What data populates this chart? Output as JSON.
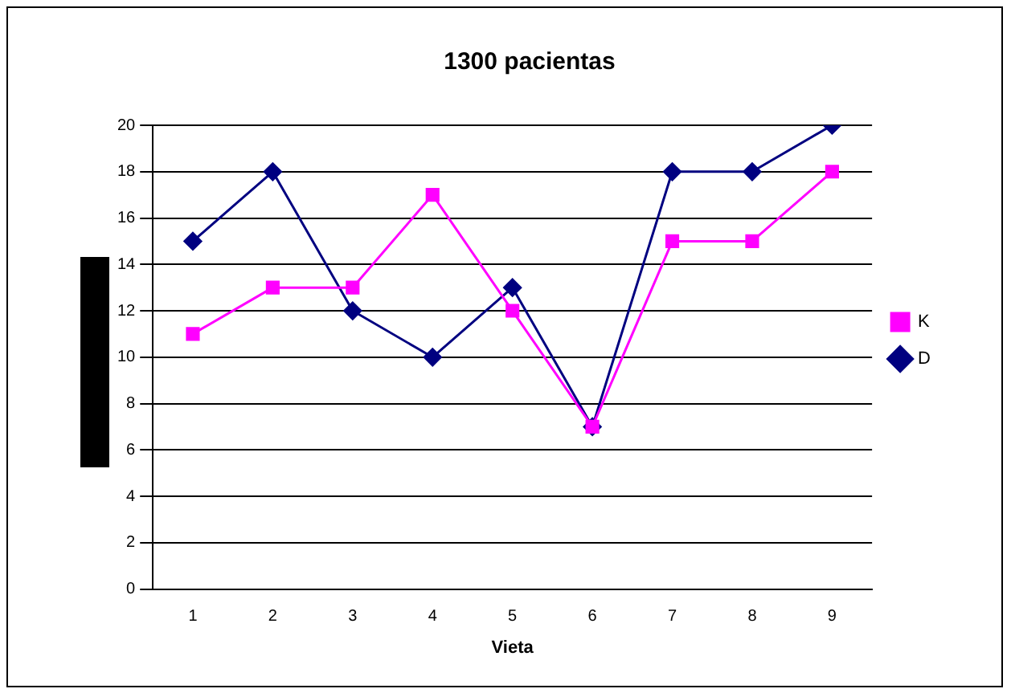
{
  "chart_data": {
    "type": "line",
    "title": "1300 pacientas",
    "xlabel": "Vieta",
    "categories": [
      "1",
      "2",
      "3",
      "4",
      "5",
      "6",
      "7",
      "8",
      "9"
    ],
    "series": [
      {
        "name": "D",
        "color": "#000080",
        "marker": "diamond",
        "values": [
          15,
          18,
          12,
          10,
          13,
          7,
          18,
          18,
          20
        ]
      },
      {
        "name": "K",
        "color": "#ff00ff",
        "marker": "square",
        "values": [
          11,
          13,
          13,
          17,
          12,
          7,
          15,
          15,
          18
        ]
      }
    ],
    "ylim": [
      0,
      20
    ],
    "yticks": [
      0,
      2,
      4,
      6,
      8,
      10,
      12,
      14,
      16,
      18,
      20
    ],
    "grid": "y",
    "legend": "right"
  }
}
